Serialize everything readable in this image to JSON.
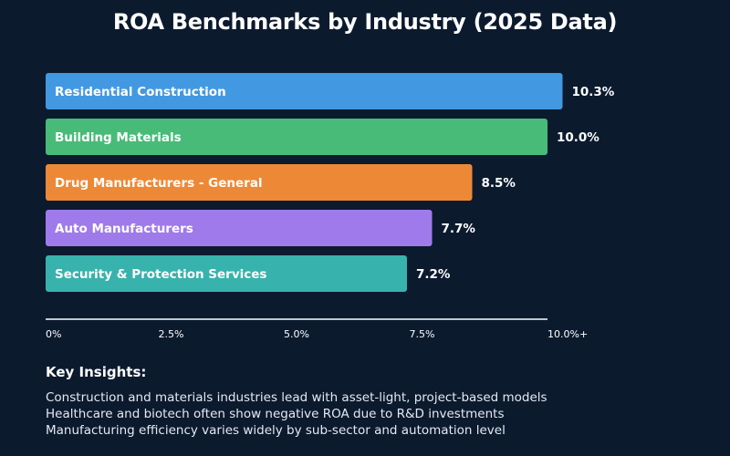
{
  "chart_data": {
    "type": "bar",
    "orientation": "horizontal",
    "title": "ROA Benchmarks by Industry (2025 Data)",
    "categories": [
      "Residential Construction",
      "Building Materials",
      "Drug Manufacturers - General",
      "Auto Manufacturers",
      "Security & Protection Services"
    ],
    "values": [
      10.3,
      10.0,
      8.5,
      7.7,
      7.2
    ],
    "value_labels": [
      "10.3%",
      "10.0%",
      "8.5%",
      "7.7%",
      "7.2%"
    ],
    "colors": [
      "#4299e1",
      "#48bb78",
      "#ed8936",
      "#9f7aea",
      "#38b2ac"
    ],
    "xlim": [
      0,
      10
    ],
    "x_ticks": [
      0,
      2.5,
      5.0,
      7.5,
      10.0
    ],
    "x_tick_labels": [
      "0%",
      "2.5%",
      "5.0%",
      "7.5%",
      "10.0%+"
    ],
    "grid": false,
    "xlabel": "",
    "ylabel": ""
  },
  "insights": {
    "heading": "Key Insights:",
    "lines": [
      "Construction and materials industries lead with asset-light, project-based models",
      "Healthcare and biotech often show negative ROA due to R&D investments",
      "Manufacturing efficiency varies widely by sub-sector and automation level"
    ]
  }
}
